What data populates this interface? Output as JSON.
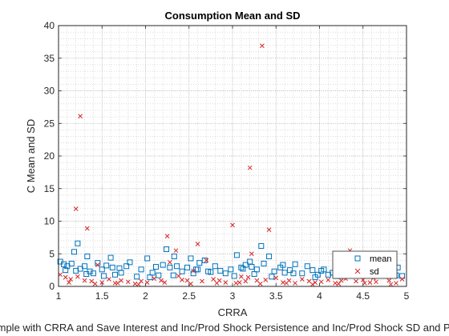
{
  "chart_data": {
    "type": "scatter",
    "title": "Consumption Mean and SD",
    "xlabel": "CRRA",
    "ylabel": "C Mean and SD",
    "caption": "Sample with CRRA and Save Interest and Inc/Prod Shock Persistence and Inc/Prod Shock SD and Prod Fu",
    "xlim": [
      1,
      5
    ],
    "ylim": [
      0,
      40
    ],
    "xticks": [
      "1",
      "1.5",
      "2",
      "2.5",
      "3",
      "3.5",
      "4",
      "4.5",
      "5"
    ],
    "yticks": [
      "0",
      "5",
      "10",
      "15",
      "20",
      "25",
      "30",
      "35",
      "40"
    ],
    "grid": true,
    "minor_grid": true,
    "legend_position": "bottom-right",
    "colors": {
      "mean": "#0072bd",
      "sd": "#d62728",
      "grid": "#c8c8c8",
      "axis": "#262626"
    },
    "series": [
      {
        "name": "mean",
        "marker": "square",
        "x": [
          1.02,
          1.06,
          1.1,
          1.15,
          1.18,
          1.22,
          1.25,
          1.3,
          1.33,
          1.36,
          1.4,
          1.45,
          1.5,
          1.55,
          1.6,
          1.65,
          1.7,
          1.78,
          1.82,
          1.9,
          1.95,
          2.02,
          2.08,
          2.15,
          2.2,
          2.24,
          2.28,
          2.33,
          2.36,
          2.42,
          2.48,
          2.52,
          2.58,
          2.62,
          2.68,
          2.72,
          2.8,
          2.86,
          2.92,
          2.98,
          3.05,
          3.1,
          3.15,
          3.2,
          3.22,
          3.28,
          3.33,
          3.36,
          3.42,
          3.48,
          3.55,
          3.6,
          3.66,
          3.72,
          3.8,
          3.86,
          3.92,
          3.98,
          4.05,
          4.1,
          4.15,
          4.22,
          4.3,
          4.35,
          4.38,
          4.45,
          4.5,
          4.55,
          4.62,
          4.68,
          4.72,
          4.78,
          4.85,
          4.9,
          4.95,
          1.08,
          1.32,
          1.52,
          1.72,
          2.05,
          2.32,
          2.55,
          2.75,
          3.02,
          3.25,
          3.45,
          3.7,
          3.95,
          4.2,
          4.42,
          4.65,
          4.88,
          1.2,
          1.62,
          2.12,
          2.6,
          3.12,
          3.58,
          4.02,
          4.58
        ],
        "y": [
          3.8,
          3.4,
          3.1,
          3.5,
          5.3,
          6.6,
          2.7,
          3.1,
          4.6,
          2.3,
          2.0,
          3.6,
          2.6,
          3.2,
          4.4,
          1.8,
          2.8,
          3.1,
          3.7,
          1.5,
          2.6,
          4.3,
          2.1,
          1.7,
          3.3,
          5.7,
          2.9,
          4.6,
          3.1,
          2.3,
          2.9,
          4.3,
          2.6,
          3.6,
          4.0,
          2.3,
          3.1,
          2.4,
          2.0,
          2.6,
          4.8,
          2.9,
          3.3,
          3.8,
          3.0,
          2.6,
          6.2,
          3.5,
          4.6,
          2.3,
          2.9,
          2.1,
          2.5,
          3.4,
          2.0,
          3.1,
          2.5,
          1.8,
          2.6,
          1.8,
          2.1,
          2.9,
          3.5,
          4.3,
          2.7,
          3.1,
          2.2,
          1.8,
          3.5,
          4.1,
          2.5,
          4.6,
          1.9,
          2.9,
          1.6,
          2.5,
          1.9,
          1.6,
          2.1,
          1.4,
          1.7,
          2.0,
          2.2,
          1.6,
          1.9,
          1.5,
          2.0,
          1.4,
          1.6,
          2.0,
          2.3,
          1.7,
          2.4,
          2.9,
          3.0,
          2.6,
          2.7,
          3.3,
          2.4,
          2.8
        ]
      },
      {
        "name": "sd",
        "marker": "x",
        "x": [
          1.02,
          1.08,
          1.14,
          1.2,
          1.22,
          1.25,
          1.3,
          1.33,
          1.38,
          1.45,
          1.5,
          1.58,
          1.65,
          1.72,
          1.8,
          1.88,
          1.95,
          2.02,
          2.1,
          2.18,
          2.25,
          2.28,
          2.35,
          2.42,
          2.48,
          2.55,
          2.6,
          2.65,
          2.7,
          2.78,
          2.85,
          2.92,
          3.0,
          3.04,
          3.1,
          3.15,
          3.2,
          3.22,
          3.28,
          3.34,
          3.38,
          3.42,
          3.5,
          3.58,
          3.65,
          3.72,
          3.8,
          3.88,
          3.95,
          4.02,
          4.1,
          4.18,
          4.25,
          4.3,
          4.35,
          4.42,
          4.5,
          4.58,
          4.65,
          4.72,
          4.8,
          4.88,
          4.95,
          1.12,
          1.42,
          1.68,
          1.92,
          2.22,
          2.52,
          2.82,
          3.08,
          3.32,
          3.62,
          3.92,
          4.22,
          4.52,
          4.82,
          2.38,
          3.18,
          4.62
        ],
        "y": [
          1.8,
          1.4,
          1.1,
          11.9,
          1.5,
          26.1,
          0.9,
          8.9,
          0.8,
          3.3,
          0.6,
          1.1,
          0.5,
          0.9,
          0.7,
          0.4,
          0.8,
          0.6,
          1.2,
          0.9,
          7.7,
          3.7,
          5.5,
          1.0,
          0.9,
          2.4,
          6.5,
          0.8,
          4.0,
          1.1,
          0.9,
          0.6,
          9.4,
          0.5,
          1.5,
          0.8,
          18.2,
          5.0,
          0.9,
          36.9,
          1.0,
          8.7,
          1.3,
          0.6,
          0.9,
          0.5,
          1.1,
          0.8,
          0.6,
          0.7,
          1.0,
          0.5,
          0.9,
          1.2,
          5.5,
          0.8,
          1.0,
          0.6,
          0.7,
          2.5,
          0.9,
          0.5,
          1.1,
          0.6,
          0.4,
          0.5,
          0.3,
          0.6,
          0.4,
          0.5,
          0.6,
          0.4,
          0.5,
          0.3,
          0.4,
          0.5,
          0.3,
          1.6,
          1.4,
          1.3
        ]
      }
    ]
  }
}
